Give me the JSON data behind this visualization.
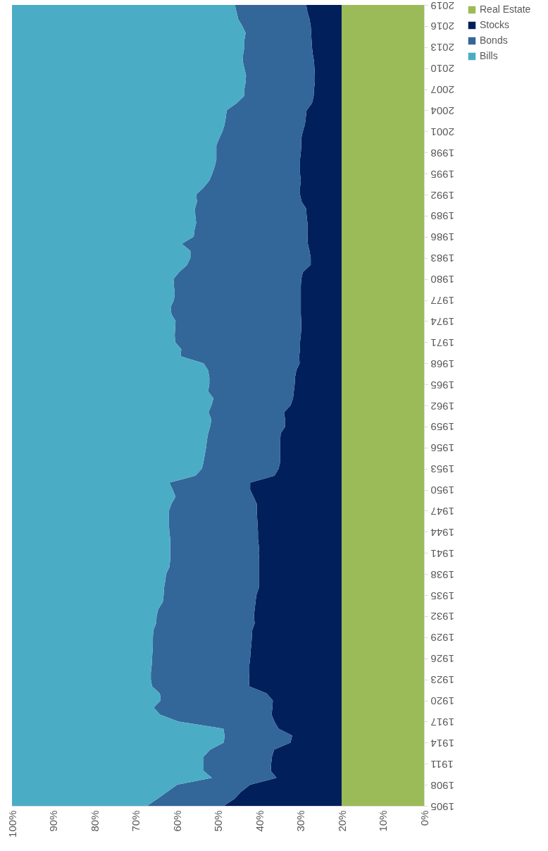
{
  "chart_data": {
    "type": "area",
    "stacked": true,
    "orientation": "horizontal",
    "grid": false,
    "legend": "right",
    "x": [
      1905,
      1906,
      1907,
      1908,
      1909,
      1910,
      1911,
      1912,
      1913,
      1914,
      1915,
      1916,
      1917,
      1918,
      1919,
      1920,
      1921,
      1922,
      1923,
      1924,
      1925,
      1926,
      1927,
      1928,
      1929,
      1930,
      1931,
      1932,
      1933,
      1934,
      1935,
      1936,
      1937,
      1938,
      1939,
      1940,
      1941,
      1942,
      1943,
      1944,
      1945,
      1946,
      1947,
      1948,
      1949,
      1950,
      1951,
      1952,
      1953,
      1954,
      1955,
      1956,
      1957,
      1958,
      1959,
      1960,
      1961,
      1962,
      1963,
      1964,
      1965,
      1966,
      1967,
      1968,
      1969,
      1970,
      1971,
      1972,
      1973,
      1974,
      1975,
      1976,
      1977,
      1978,
      1979,
      1980,
      1981,
      1982,
      1983,
      1984,
      1985,
      1986,
      1987,
      1988,
      1989,
      1990,
      1991,
      1992,
      1993,
      1994,
      1995,
      1996,
      1997,
      1998,
      1999,
      2000,
      2001,
      2002,
      2003,
      2004,
      2005,
      2006,
      2007,
      2008,
      2009,
      2010,
      2011,
      2012,
      2013,
      2014,
      2015,
      2016,
      2017,
      2018,
      2019
    ],
    "series": [
      {
        "name": "Real Estate",
        "color": "#9bbb59",
        "values": [
          20,
          20,
          20,
          20,
          20,
          20,
          20,
          20,
          20,
          20,
          20,
          20,
          20,
          20,
          20,
          20,
          20,
          20,
          20,
          20,
          20,
          20,
          20,
          20,
          20,
          20,
          20,
          20,
          20,
          20,
          20,
          20,
          20,
          20,
          20,
          20,
          20,
          20,
          20,
          20,
          20,
          20,
          20,
          20,
          20,
          20,
          20,
          20,
          20,
          20,
          20,
          20,
          20,
          20,
          20,
          20,
          20,
          20,
          20,
          20,
          20,
          20,
          20,
          20,
          20,
          20,
          20,
          20,
          20,
          20,
          20,
          20,
          20,
          20,
          20,
          20,
          20,
          20,
          20,
          20,
          20,
          20,
          20,
          20,
          20,
          20,
          20,
          20,
          20,
          20,
          20,
          20,
          20,
          20,
          20,
          20,
          20,
          20,
          20,
          20,
          20,
          20,
          20,
          20,
          20,
          20,
          20,
          20,
          20,
          20,
          20,
          20,
          20,
          20,
          20
        ]
      },
      {
        "name": "Stocks",
        "color": "#001f5b",
        "values": [
          28.6,
          26.0,
          24.4,
          22.2,
          15.8,
          17.2,
          17.1,
          16.9,
          16.4,
          12.4,
          12.0,
          15.3,
          16.3,
          17.0,
          16.8,
          16.7,
          18.2,
          22.4,
          22.5,
          22.4,
          22.4,
          22.2,
          22.1,
          21.9,
          21.8,
          21.7,
          21.1,
          21.3,
          21.1,
          20.9,
          20.7,
          20.1,
          20.1,
          20.1,
          20.1,
          20.1,
          20.0,
          20.1,
          20.3,
          20.3,
          20.4,
          20.5,
          20.6,
          20.6,
          21.4,
          22.2,
          22.2,
          16.3,
          15.3,
          14.9,
          14.9,
          14.9,
          14.9,
          14.8,
          13.7,
          13.7,
          14.0,
          12.4,
          11.8,
          11.6,
          11.4,
          11.3,
          11.0,
          10.2,
          10.3,
          10.1,
          10.1,
          9.9,
          9.8,
          9.8,
          9.9,
          9.9,
          9.9,
          9.9,
          9.9,
          9.8,
          9.4,
          7.5,
          7.5,
          7.8,
          8.2,
          8.3,
          8.3,
          8.3,
          8.5,
          8.6,
          9.7,
          10.1,
          10.1,
          9.9,
          10.1,
          10.1,
          10.1,
          9.9,
          9.8,
          9.8,
          9.4,
          8.9,
          8.7,
          8.5,
          7.2,
          6.8,
          6.7,
          6.5,
          6.5,
          6.6,
          6.7,
          7.0,
          7.2,
          7.3,
          7.4,
          7.5,
          7.8,
          8.3,
          8.6
        ]
      },
      {
        "name": "Bonds",
        "color": "#336699",
        "values": [
          18.6,
          18.7,
          17.9,
          17.7,
          15.7,
          16.3,
          16.4,
          16.6,
          15.5,
          16.2,
          16.4,
          13.4,
          23.3,
          27.1,
          28.8,
          27.2,
          25.9,
          23.6,
          23.8,
          23.9,
          23.7,
          23.8,
          23.8,
          23.9,
          24.0,
          24.0,
          23.9,
          23.6,
          23.4,
          22.5,
          22.5,
          23.0,
          22.7,
          22.5,
          21.7,
          21.5,
          21.6,
          21.5,
          21.3,
          21.5,
          21.5,
          21.4,
          21.3,
          20.7,
          18.9,
          18.8,
          19.6,
          19.2,
          18.6,
          18.6,
          18.3,
          18.0,
          17.8,
          17.6,
          18.2,
          17.9,
          18.3,
          19.2,
          19.3,
          20.8,
          20.7,
          20.8,
          21.4,
          23.3,
          28.8,
          28.8,
          30.3,
          30.6,
          30.6,
          30.5,
          31.4,
          31.6,
          30.8,
          30.6,
          30.8,
          31.0,
          30.0,
          30.0,
          29.2,
          28.9,
          30.6,
          27.6,
          27.4,
          27.0,
          27.0,
          27.0,
          25.4,
          25.2,
          23.4,
          22.2,
          21.3,
          20.7,
          20.3,
          20.5,
          20.6,
          19.9,
          19.5,
          19.5,
          19.4,
          19.4,
          18.3,
          16.9,
          16.9,
          16.8,
          16.7,
          17.0,
          17.3,
          16.9,
          16.4,
          16.3,
          15.9,
          16.6,
          17.3,
          17.2,
          17.3
        ]
      },
      {
        "name": "Bills",
        "color": "#4bacc6",
        "values": [
          32.8,
          35.3,
          37.7,
          40.1,
          48.5,
          46.5,
          46.5,
          46.5,
          48.1,
          51.4,
          51.6,
          51.3,
          40.4,
          35.9,
          34.4,
          36.1,
          35.9,
          34.0,
          33.7,
          33.7,
          33.9,
          34.0,
          34.1,
          34.2,
          34.2,
          34.3,
          35.0,
          35.1,
          35.5,
          36.6,
          36.8,
          36.9,
          37.2,
          37.4,
          38.2,
          38.4,
          38.4,
          38.4,
          38.4,
          38.2,
          38.1,
          38.1,
          38.1,
          38.7,
          39.7,
          39.0,
          38.2,
          44.5,
          46.1,
          46.5,
          46.8,
          47.1,
          47.3,
          47.6,
          48.1,
          48.4,
          47.7,
          48.4,
          48.9,
          47.6,
          47.9,
          47.9,
          47.6,
          46.5,
          40.9,
          41.1,
          39.6,
          39.5,
          39.6,
          39.7,
          38.7,
          38.5,
          39.3,
          39.5,
          39.3,
          39.2,
          40.6,
          42.5,
          43.3,
          43.3,
          41.2,
          44.1,
          44.3,
          44.7,
          44.5,
          44.4,
          44.9,
          44.7,
          46.5,
          47.9,
          48.6,
          49.2,
          49.6,
          49.6,
          49.6,
          50.3,
          51.1,
          51.6,
          51.9,
          52.1,
          54.5,
          56.3,
          56.4,
          56.7,
          56.8,
          56.4,
          56.0,
          56.1,
          56.4,
          56.4,
          56.7,
          55.9,
          54.9,
          54.5,
          54.1
        ]
      }
    ],
    "xlim": [
      100,
      0
    ],
    "xticks": [
      {
        "value": 100,
        "label": "100%"
      },
      {
        "value": 90,
        "label": "90%"
      },
      {
        "value": 80,
        "label": "80%"
      },
      {
        "value": 70,
        "label": "70%"
      },
      {
        "value": 60,
        "label": "60%"
      },
      {
        "value": 50,
        "label": "50%"
      },
      {
        "value": 40,
        "label": "40%"
      },
      {
        "value": 30,
        "label": "30%"
      },
      {
        "value": 20,
        "label": "20%"
      },
      {
        "value": 10,
        "label": "10%"
      },
      {
        "value": 0,
        "label": "0%"
      }
    ],
    "ylim": [
      1905,
      2019
    ],
    "yticks": [
      1905,
      1908,
      1911,
      1914,
      1917,
      1920,
      1923,
      1926,
      1929,
      1932,
      1935,
      1938,
      1941,
      1944,
      1947,
      1950,
      1953,
      1956,
      1959,
      1962,
      1965,
      1968,
      1971,
      1974,
      1977,
      1980,
      1983,
      1986,
      1989,
      1992,
      1995,
      1998,
      2001,
      2004,
      2007,
      2010,
      2013,
      2016,
      2019
    ]
  }
}
